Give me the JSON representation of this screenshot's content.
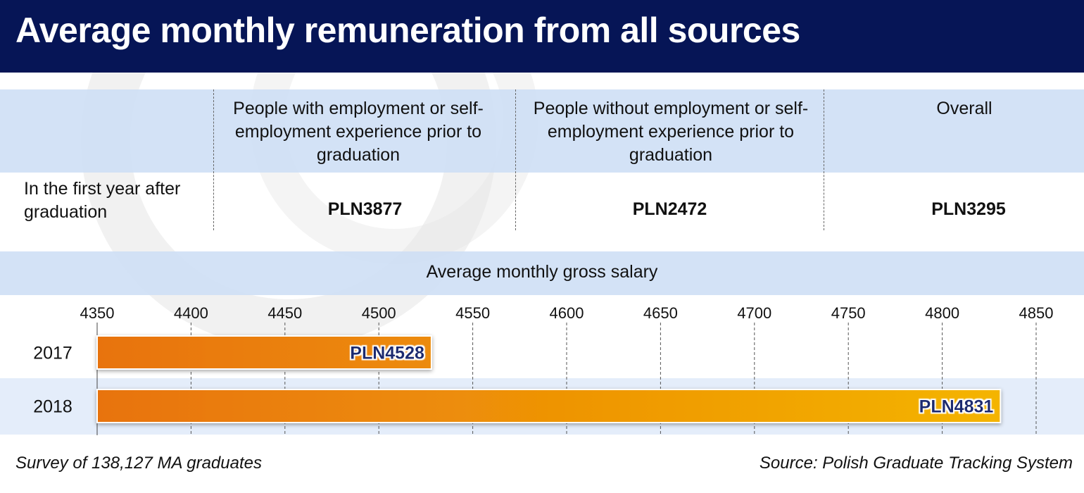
{
  "header": {
    "title": "Average monthly remuneration from all sources"
  },
  "table": {
    "columns": [
      "People with employment or self-employment experience prior to graduation",
      "People without employment or self-employment experience prior to graduation",
      "Overall"
    ],
    "row_label": "In the first year after graduation",
    "values": [
      "PLN3877",
      "PLN2472",
      "PLN3295"
    ]
  },
  "salary_section": {
    "title": "Average monthly gross salary"
  },
  "chart_data": {
    "type": "bar",
    "orientation": "horizontal",
    "title": "Average monthly gross salary",
    "categories": [
      "2017",
      "2018"
    ],
    "values": [
      4528,
      4831
    ],
    "data_labels": [
      "PLN4528",
      "PLN4831"
    ],
    "xlim": [
      4350,
      4850
    ],
    "x_ticks": [
      "4350",
      "4400",
      "4450",
      "4500",
      "4550",
      "4600",
      "4650",
      "4700",
      "4750",
      "4800",
      "4850"
    ],
    "grid": true,
    "colors": {
      "bar_start": "#E8720C",
      "bar_end": "#F4B400",
      "label": "#1A2A70"
    }
  },
  "footer": {
    "left": "Survey of 138,127 MA graduates",
    "right": "Source: Polish Graduate Tracking System"
  }
}
